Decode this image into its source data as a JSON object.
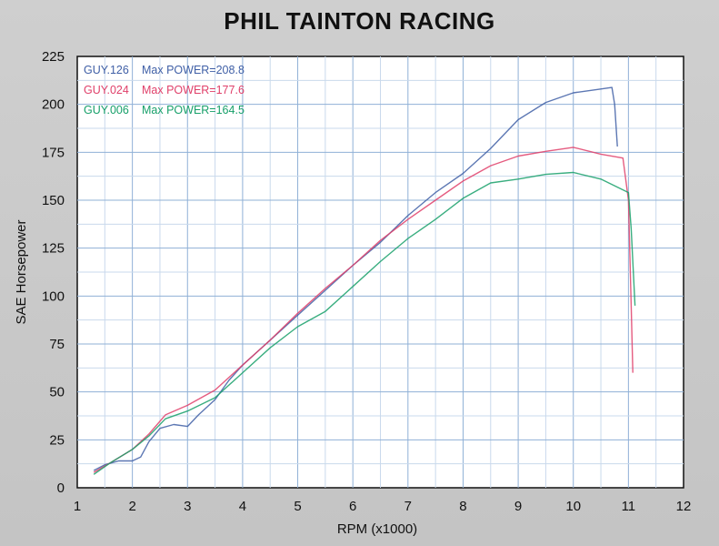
{
  "chart_data": {
    "type": "line",
    "title": "PHIL TAINTON RACING",
    "xlabel": "RPM (x1000)",
    "ylabel": "SAE Horsepower",
    "xlim": [
      1,
      12
    ],
    "ylim": [
      0,
      225
    ],
    "xticks": [
      "1",
      "2",
      "3",
      "4",
      "5",
      "6",
      "7",
      "8",
      "9",
      "10",
      "11",
      "12"
    ],
    "yticks": [
      "0",
      "25",
      "50",
      "75",
      "100",
      "125",
      "150",
      "175",
      "200",
      "225"
    ],
    "grid": true,
    "legend_position": "top-left",
    "series": [
      {
        "name": "GUY.126",
        "label": "Max POWER=208.8",
        "color": "#3f5fa6",
        "points": [
          [
            1.3,
            9
          ],
          [
            1.5,
            12
          ],
          [
            1.75,
            14
          ],
          [
            2.0,
            14
          ],
          [
            2.15,
            16
          ],
          [
            2.3,
            24
          ],
          [
            2.5,
            31
          ],
          [
            2.75,
            33
          ],
          [
            3.0,
            32
          ],
          [
            3.2,
            38
          ],
          [
            3.5,
            46
          ],
          [
            3.75,
            56
          ],
          [
            4.0,
            64
          ],
          [
            4.5,
            77
          ],
          [
            5.0,
            90
          ],
          [
            5.5,
            103
          ],
          [
            6.0,
            116
          ],
          [
            6.5,
            128
          ],
          [
            7.0,
            142
          ],
          [
            7.5,
            154
          ],
          [
            8.0,
            164
          ],
          [
            8.5,
            177
          ],
          [
            9.0,
            192
          ],
          [
            9.5,
            201
          ],
          [
            10.0,
            206
          ],
          [
            10.5,
            208
          ],
          [
            10.7,
            208.8
          ],
          [
            10.75,
            200
          ],
          [
            10.8,
            178
          ]
        ]
      },
      {
        "name": "GUY.024",
        "label": "Max POWER=177.6",
        "color": "#e0406a",
        "points": [
          [
            1.3,
            8
          ],
          [
            1.6,
            13
          ],
          [
            2.0,
            20
          ],
          [
            2.3,
            28
          ],
          [
            2.6,
            38
          ],
          [
            3.0,
            43
          ],
          [
            3.5,
            51
          ],
          [
            4.0,
            64
          ],
          [
            4.5,
            77
          ],
          [
            5.0,
            91
          ],
          [
            5.5,
            104
          ],
          [
            6.0,
            116
          ],
          [
            6.5,
            129
          ],
          [
            7.0,
            140
          ],
          [
            7.5,
            150
          ],
          [
            8.0,
            160
          ],
          [
            8.5,
            168
          ],
          [
            9.0,
            173
          ],
          [
            9.5,
            175.5
          ],
          [
            10.0,
            177.6
          ],
          [
            10.5,
            174
          ],
          [
            10.9,
            172
          ],
          [
            11.0,
            150
          ],
          [
            11.05,
            95
          ],
          [
            11.08,
            60
          ]
        ]
      },
      {
        "name": "GUY.006",
        "label": "Max POWER=164.5",
        "color": "#17a06a",
        "points": [
          [
            1.3,
            7
          ],
          [
            1.6,
            13
          ],
          [
            2.0,
            20
          ],
          [
            2.3,
            27
          ],
          [
            2.6,
            36
          ],
          [
            3.0,
            40
          ],
          [
            3.5,
            47
          ],
          [
            4.0,
            60
          ],
          [
            4.5,
            73
          ],
          [
            5.0,
            84
          ],
          [
            5.5,
            92
          ],
          [
            6.0,
            105
          ],
          [
            6.5,
            118
          ],
          [
            7.0,
            130
          ],
          [
            7.5,
            140
          ],
          [
            8.0,
            151
          ],
          [
            8.5,
            159
          ],
          [
            9.0,
            161
          ],
          [
            9.5,
            163.5
          ],
          [
            10.0,
            164.5
          ],
          [
            10.5,
            161
          ],
          [
            11.0,
            154
          ],
          [
            11.05,
            135
          ],
          [
            11.12,
            95
          ]
        ]
      }
    ]
  }
}
